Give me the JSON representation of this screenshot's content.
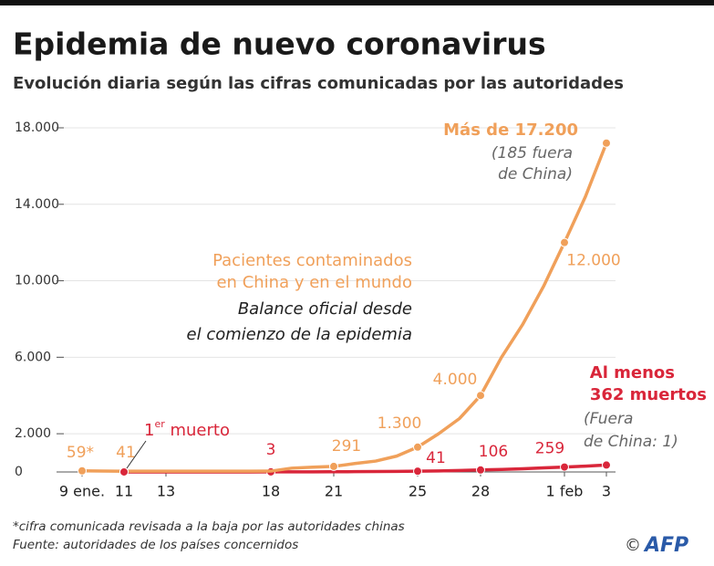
{
  "chart_data": {
    "type": "line",
    "title": "Epidemia de nuevo coronavirus",
    "subtitle": "Evolución diaria según las cifras comunicadas por las autoridades",
    "categories": [
      "9 ene.",
      null,
      "11",
      null,
      "13",
      null,
      null,
      null,
      null,
      "18",
      null,
      null,
      "21",
      null,
      null,
      null,
      "25",
      null,
      null,
      "28",
      null,
      null,
      null,
      "1 feb",
      null,
      "3"
    ],
    "series": [
      {
        "name": "Pacientes contaminados",
        "color": "#f0a05a",
        "values": [
          59,
          50,
          41,
          41,
          41,
          41,
          41,
          41,
          41,
          45,
          200,
          250,
          291,
          440,
          570,
          830,
          1300,
          2000,
          2800,
          4000,
          6000,
          7700,
          9700,
          12000,
          14400,
          17200
        ],
        "value_labels": [
          "59*",
          null,
          "41",
          null,
          null,
          null,
          null,
          null,
          null,
          null,
          null,
          null,
          "291",
          null,
          null,
          null,
          "1.300",
          null,
          null,
          "4.000",
          null,
          null,
          null,
          "12.000",
          null,
          null
        ]
      },
      {
        "name": "Muertos",
        "color": "#d9263a",
        "values": [
          null,
          null,
          1,
          1,
          1,
          1,
          2,
          2,
          2,
          3,
          4,
          6,
          9,
          17,
          25,
          30,
          41,
          56,
          80,
          106,
          132,
          170,
          213,
          259,
          304,
          362
        ],
        "value_labels": [
          null,
          null,
          null,
          null,
          null,
          null,
          null,
          null,
          null,
          "3",
          null,
          null,
          null,
          null,
          null,
          null,
          "41",
          null,
          null,
          "106",
          null,
          null,
          null,
          "259",
          null,
          null
        ]
      }
    ],
    "ylim": [
      0,
      18000
    ],
    "yticks": [
      0,
      {
        "value": 2000,
        "label": "2.000"
      },
      {
        "value": 6000,
        "label": "6.000"
      },
      {
        "value": 10000,
        "label": "10.000"
      },
      {
        "value": 14000,
        "label": "14.000"
      },
      {
        "value": 18000,
        "label": "18.000"
      }
    ],
    "grid": true,
    "annotations": {
      "total": [
        "Más de 17.200"
      ],
      "outside": [
        "(185 fuera",
        "de China)"
      ],
      "patients": [
        "Pacientes contaminados",
        "en China y en el mundo"
      ],
      "balance": [
        "Balance oficial desde",
        "el comienzo de la epidemia"
      ],
      "dead": [
        "Al menos",
        "362 muertos"
      ],
      "dead_outside": [
        "(Fuera",
        "de China: 1)"
      ],
      "first_dead": [
        "1",
        "er",
        " muerto"
      ]
    },
    "footnotes": [
      "*cifra comunicada revisada a la baja por las autoridades chinas",
      "Fuente: autoridades de los países concernidos"
    ],
    "credit": [
      "©",
      "AFP"
    ]
  }
}
